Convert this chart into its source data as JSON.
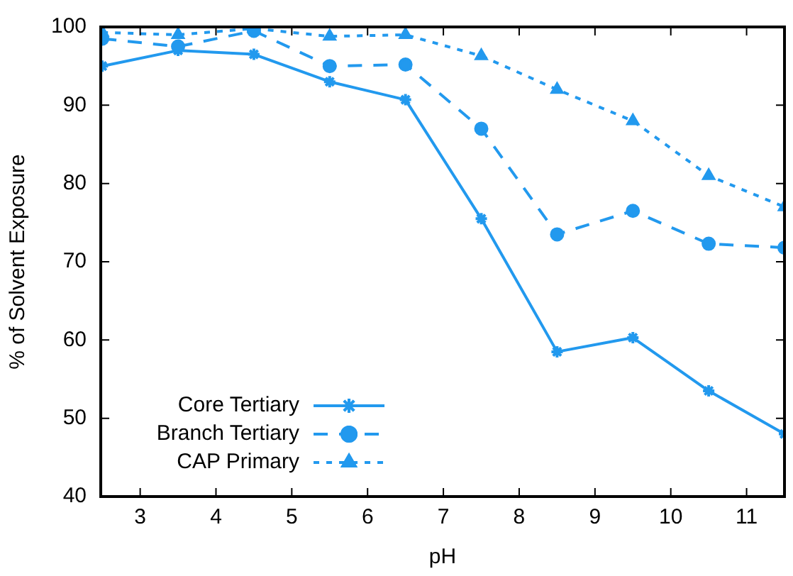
{
  "chart_data": {
    "type": "line",
    "xlabel": "pH",
    "ylabel": "% of Solvent Exposure",
    "x": [
      2.5,
      3.5,
      4.5,
      5.5,
      6.5,
      7.5,
      8.5,
      9.5,
      10.5,
      11.5
    ],
    "series": [
      {
        "name": "Core Tertiary",
        "color": "#2299ee",
        "marker": "cross",
        "line_style": "solid",
        "values": [
          95,
          97,
          96.5,
          93,
          90.7,
          75.5,
          58.5,
          60.3,
          53.5,
          48
        ]
      },
      {
        "name": "Branch Tertiary",
        "color": "#2299ee",
        "marker": "circle",
        "line_style": "dashed",
        "values": [
          98.5,
          97.5,
          99.5,
          95,
          95.2,
          87,
          73.5,
          76.5,
          72.3,
          71.8
        ]
      },
      {
        "name": "CAP Primary",
        "color": "#2299ee",
        "marker": "triangle",
        "line_style": "dotted",
        "values": [
          99.3,
          99,
          99.8,
          98.8,
          99,
          96.3,
          92,
          88,
          81,
          77
        ]
      }
    ],
    "xlim": [
      2.48,
      11.5
    ],
    "xticks": [
      3,
      4,
      5,
      6,
      7,
      8,
      9,
      10,
      11
    ],
    "ylim": [
      40,
      100
    ],
    "yticks": [
      40,
      50,
      60,
      70,
      80,
      90,
      100
    ],
    "grid": false,
    "legend": "bottom left"
  }
}
